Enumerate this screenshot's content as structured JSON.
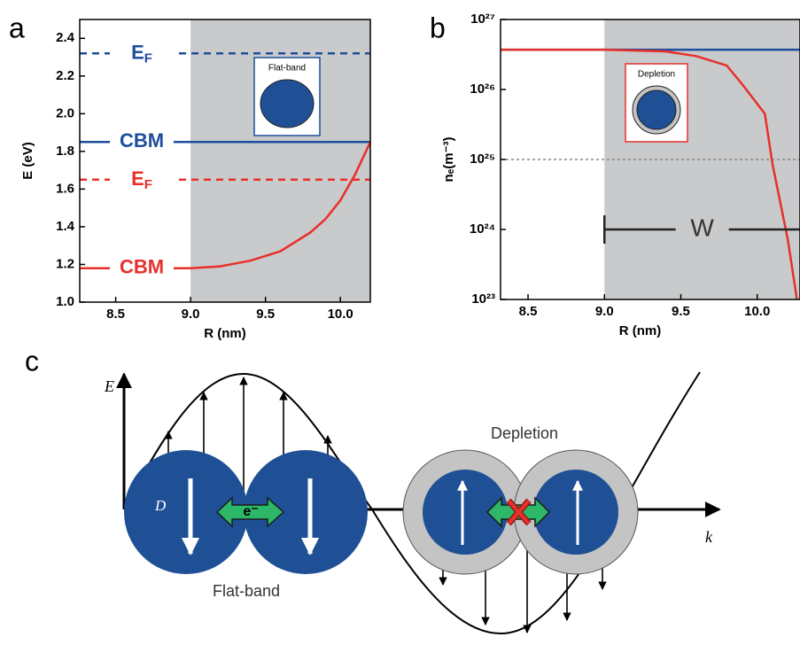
{
  "chart_data": [
    {
      "type": "line",
      "panel_label": "a",
      "xlabel": "R (nm)",
      "ylabel": "E (eV)",
      "inset_label": "Flat-band",
      "xlim": [
        8.26,
        10.2
      ],
      "xticks": [
        8.5,
        {
          "value": 9,
          "label": "9.0"
        },
        9.5,
        {
          "value": 10,
          "label": "10.0"
        }
      ],
      "ylim": [
        1.0,
        2.5
      ],
      "yticks": [
        {
          "value": 1,
          "label": "1.0"
        },
        1.2,
        1.4,
        1.6,
        1.8,
        {
          "value": 2,
          "label": "2.0"
        },
        2.2,
        2.4
      ],
      "shade_x": [
        9.0,
        10.2
      ],
      "shade_color": "#c8cacc",
      "series": [
        {
          "name": "E",
          "subscript": "F",
          "color": "#1f4e9c",
          "dashed": true,
          "x": [
            8.26,
            10.2
          ],
          "values": [
            2.32,
            2.32
          ]
        },
        {
          "name": "CBM",
          "color": "#1f4e9c",
          "x": [
            8.26,
            10.2
          ],
          "values": [
            1.85,
            1.85
          ]
        },
        {
          "name": "E",
          "subscript": "F",
          "color": "#e8302a",
          "dashed": true,
          "x": [
            8.26,
            10.2
          ],
          "values": [
            1.65,
            1.65
          ]
        },
        {
          "name": "CBM",
          "color": "#e8302a",
          "x": [
            8.26,
            9.0,
            9.2,
            9.4,
            9.6,
            9.8,
            9.9,
            10.0,
            10.1,
            10.2
          ],
          "values": [
            1.18,
            1.18,
            1.19,
            1.22,
            1.27,
            1.37,
            1.44,
            1.54,
            1.68,
            1.85
          ]
        }
      ]
    },
    {
      "type": "line",
      "panel_label": "b",
      "xlabel": "R (nm)",
      "ylabel": "nₑ(m⁻³)",
      "inset_label": "Depletion",
      "log_y": true,
      "xlim": [
        8.32,
        10.28
      ],
      "xticks": [
        8.5,
        {
          "value": 9,
          "label": "9.0"
        },
        9.5,
        {
          "value": 10,
          "label": "10.0"
        }
      ],
      "ylim": [
        1e+23,
        1e+27
      ],
      "yticks": [
        {
          "value": 1e+23,
          "label": "10²³"
        },
        {
          "value": 1e+24,
          "label": "10²⁴"
        },
        {
          "value": 1e+25,
          "label": "10²⁵"
        },
        {
          "value": 1e+26,
          "label": "10²⁶"
        },
        {
          "value": 1e+27,
          "label": "10²⁷"
        }
      ],
      "shade_x": [
        9.0,
        10.28
      ],
      "shade_color": "#c8cacc",
      "bracket": {
        "label": "W",
        "x": [
          9.0,
          10.28
        ],
        "y": 1e+24
      },
      "series": [
        {
          "color": "#888888",
          "dotted": true,
          "x": [
            8.32,
            10.28
          ],
          "values": [
            1e+25,
            1e+25
          ]
        },
        {
          "color": "#1f4e9c",
          "x": [
            8.32,
            10.28
          ],
          "values": [
            3.7e+26,
            3.7e+26
          ]
        },
        {
          "color": "#e8302a",
          "x": [
            8.32,
            9.0,
            9.4,
            9.6,
            9.8,
            9.9,
            10.05,
            10.1,
            10.2,
            10.26
          ],
          "values": [
            3.7e+26,
            3.7e+26,
            3.5e+26,
            3e+26,
            2.2e+26,
            1.2e+26,
            4.5e+25,
            8.6e+24,
            7.2e+23,
            1e+23
          ]
        }
      ]
    }
  ],
  "diagram": {
    "panel_label": "c",
    "e_axis": "E⃗",
    "k_axis": "k⃗",
    "d_vector": "D⃗",
    "electron": "e⁻",
    "depletion": "Depletion",
    "flat_band": "Flat-band"
  }
}
